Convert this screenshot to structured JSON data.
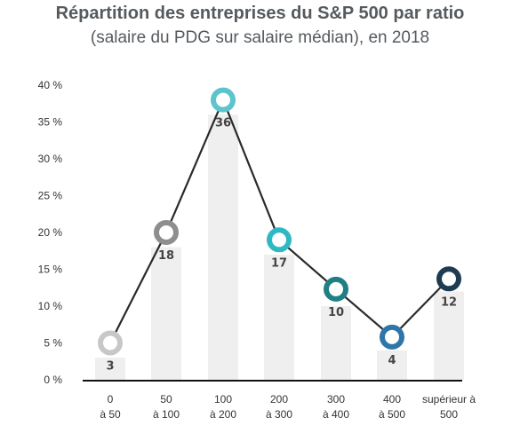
{
  "chart_data": {
    "type": "line",
    "title": "Répartition des entreprises du S&P 500 par ratio",
    "subtitle": "(salaire du PDG sur salaire médian), en 2018",
    "xlabel": "",
    "ylabel": "",
    "ylim": [
      0,
      40
    ],
    "y_ticks": [
      "0 %",
      "5 %",
      "10 %",
      "15 %",
      "20 %",
      "25 %",
      "30 %",
      "35 %",
      "40 %"
    ],
    "categories": [
      [
        "0",
        "à 50"
      ],
      [
        "50",
        "à 100"
      ],
      [
        "100",
        "à 200"
      ],
      [
        "200",
        "à 300"
      ],
      [
        "300",
        "à 400"
      ],
      [
        "400",
        "à 500"
      ],
      [
        "supérieur à",
        "500"
      ]
    ],
    "values": [
      5,
      20,
      38,
      19,
      12.3,
      5.8,
      13.7
    ],
    "bar_values": [
      3,
      18,
      36,
      17,
      10,
      4,
      12
    ],
    "data_labels": [
      "3",
      "18",
      "36",
      "17",
      "10",
      "4",
      "12"
    ],
    "marker_colors": [
      "#c7c7c7",
      "#8e8e8e",
      "#5ec3cc",
      "#2fb8c4",
      "#1f7f84",
      "#2e76a8",
      "#1d3c52"
    ],
    "line_color": "#2a2a2a",
    "bar_color": "#efefef",
    "grid": false,
    "legend": "none"
  }
}
